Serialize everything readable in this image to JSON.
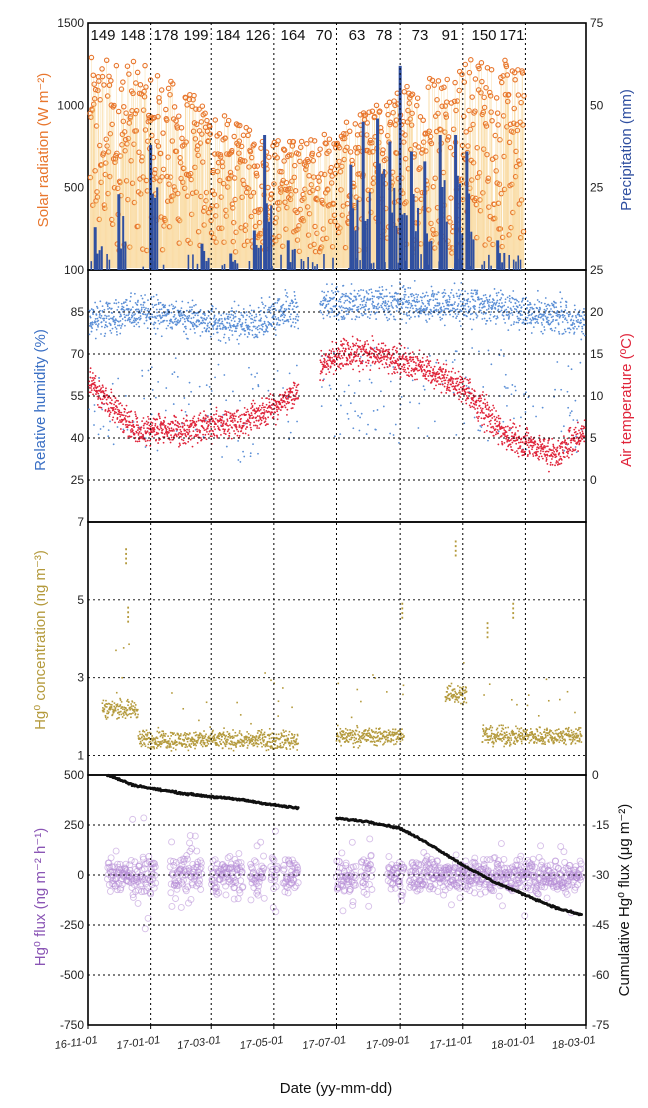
{
  "chart_data": [
    {
      "type": "bar",
      "panel": "a",
      "annotations": [
        "149",
        "148",
        "178",
        "199",
        "184",
        "126",
        "164",
        "70",
        "63",
        "78",
        "73",
        "91",
        "150",
        "171"
      ],
      "left_axis": {
        "label": "Solar radiation (W m⁻²)",
        "ticks": [
          "1500",
          "1000",
          "500",
          "100"
        ],
        "ylim": [
          0,
          1500
        ],
        "color": "#e8762d"
      },
      "right_axis": {
        "label": "Precipitation (mm)",
        "ticks": [
          "75",
          "50",
          "25"
        ],
        "ylim": [
          0,
          75
        ],
        "color": "#2f4fa0"
      },
      "series": [
        {
          "name": "Solar radiation",
          "kind": "scatter",
          "color": "#e8762d",
          "typical_range": [
            100,
            1300
          ]
        },
        {
          "name": "Precipitation",
          "kind": "bar",
          "color": "#2f4fa0",
          "events": [
            {
              "date": "16-11-08",
              "mm": 13
            },
            {
              "date": "16-12-01",
              "mm": 23
            },
            {
              "date": "17-01-01",
              "mm": 38
            },
            {
              "date": "17-02-20",
              "mm": 8
            },
            {
              "date": "17-03-20",
              "mm": 5
            },
            {
              "date": "17-04-12",
              "mm": 12
            },
            {
              "date": "17-04-22",
              "mm": 41
            },
            {
              "date": "17-05-15",
              "mm": 9
            },
            {
              "date": "17-07-15",
              "mm": 32
            },
            {
              "date": "17-07-27",
              "mm": 45
            },
            {
              "date": "17-08-10",
              "mm": 46
            },
            {
              "date": "17-08-22",
              "mm": 39
            },
            {
              "date": "17-09-01",
              "mm": 62
            },
            {
              "date": "17-09-12",
              "mm": 36
            },
            {
              "date": "17-09-25",
              "mm": 33
            },
            {
              "date": "17-10-10",
              "mm": 41
            },
            {
              "date": "17-10-25",
              "mm": 41
            },
            {
              "date": "17-11-05",
              "mm": 36
            },
            {
              "date": "17-12-05",
              "mm": 9
            }
          ]
        }
      ]
    },
    {
      "type": "scatter",
      "panel": "b",
      "left_axis": {
        "label": "Relative humidity (%)",
        "ticks": [
          "100",
          "85",
          "70",
          "55",
          "40",
          "25"
        ],
        "ylim": [
          10,
          100
        ],
        "color": "#3a6fc4"
      },
      "right_axis": {
        "label": "Air temperature (ºC)",
        "ticks": [
          "25",
          "20",
          "15",
          "10",
          "5",
          "0"
        ],
        "ylim": [
          -5,
          25
        ],
        "color": "#e0243a"
      },
      "series": [
        {
          "name": "Relative humidity",
          "color": "#5b8fd6",
          "profile": [
            [
              "16-11-01",
              82
            ],
            [
              "17-01-01",
              85
            ],
            [
              "17-04-01",
              80
            ],
            [
              "17-06-15",
              88
            ],
            [
              "17-09-01",
              88
            ],
            [
              "17-12-01",
              87
            ],
            [
              "18-03-01",
              82
            ]
          ]
        },
        {
          "name": "Air temperature",
          "color": "#e0243a",
          "profile": [
            [
              "16-11-01",
              12
            ],
            [
              "16-12-15",
              6
            ],
            [
              "17-02-01",
              6
            ],
            [
              "17-04-01",
              7
            ],
            [
              "17-05-20",
              10
            ],
            [
              "17-07-01",
              15
            ],
            [
              "17-08-15",
              15
            ],
            [
              "17-10-01",
              13
            ],
            [
              "17-11-01",
              11
            ],
            [
              "17-12-15",
              5
            ],
            [
              "18-02-01",
              3
            ],
            [
              "18-03-01",
              6
            ]
          ]
        }
      ]
    },
    {
      "type": "scatter",
      "panel": "c",
      "left_axis": {
        "label": "Hg⁰ concentration (ng m⁻³)",
        "ticks": [
          "7",
          "5",
          "3",
          "1"
        ],
        "ylim": [
          0.5,
          7
        ],
        "color": "#b49a3c"
      },
      "series": [
        {
          "name": "Hg0 concentration",
          "color": "#b49a3c",
          "segments": [
            {
              "start": "16-11-15",
              "end": "16-12-20",
              "mean": 2.2
            },
            {
              "start": "16-12-20",
              "end": "17-05-25",
              "mean": 1.4
            },
            {
              "start": "17-07-01",
              "end": "17-09-05",
              "mean": 1.5
            },
            {
              "start": "17-10-15",
              "end": "17-11-05",
              "mean": 2.6
            },
            {
              "start": "17-11-20",
              "end": "18-02-25",
              "mean": 1.5
            }
          ],
          "peaks": [
            {
              "date": "16-12-08",
              "value": 6.3
            },
            {
              "date": "16-12-10",
              "value": 4.8
            },
            {
              "date": "17-09-03",
              "value": 4.9
            },
            {
              "date": "17-10-25",
              "value": 6.5
            },
            {
              "date": "17-11-25",
              "value": 4.4
            },
            {
              "date": "17-12-20",
              "value": 4.9
            }
          ]
        }
      ]
    },
    {
      "type": "scatter",
      "panel": "d",
      "left_axis": {
        "label": "Hg⁰ flux (ng m⁻² h⁻¹)",
        "ticks": [
          "500",
          "250",
          "0",
          "-250",
          "-500",
          "-750"
        ],
        "ylim": [
          -750,
          500
        ],
        "color": "#8a55b5"
      },
      "right_axis": {
        "label": "Cumulative Hg⁰ flux (μg m⁻²)",
        "ticks": [
          "0",
          "-15",
          "-30",
          "-45",
          "-60",
          "-75"
        ],
        "ylim": [
          -75,
          0
        ],
        "color": "#111111"
      },
      "series": [
        {
          "name": "Hg0 flux",
          "color": "#b48ad6",
          "segments": [
            [
              "16-11-20",
              "17-01-06"
            ],
            [
              "17-01-20",
              "17-02-20"
            ],
            [
              "17-03-01",
              "17-04-01"
            ],
            [
              "17-04-08",
              "17-04-22"
            ],
            [
              "17-04-28",
              "17-05-05"
            ],
            [
              "17-05-10",
              "17-05-25"
            ],
            [
              "17-07-01",
              "17-07-20"
            ],
            [
              "17-07-25",
              "17-08-05"
            ],
            [
              "17-08-20",
              "17-09-05"
            ],
            [
              "17-09-10",
              "18-02-25"
            ]
          ]
        },
        {
          "name": "Cumulative Hg0 flux",
          "color": "#111111",
          "profile": [
            [
              "16-11-20",
              0
            ],
            [
              "16-12-15",
              -3
            ],
            [
              "17-01-01",
              -4
            ],
            [
              "17-02-01",
              -5.5
            ],
            [
              "17-03-01",
              -6.5
            ],
            [
              "17-04-01",
              -7.5
            ],
            [
              "17-05-01",
              -9
            ],
            [
              "17-05-25",
              -10
            ],
            [
              "17-07-01",
              -13
            ],
            [
              "17-08-01",
              -14
            ],
            [
              "17-09-01",
              -16
            ],
            [
              "17-10-01",
              -21
            ],
            [
              "17-11-01",
              -27
            ],
            [
              "17-12-01",
              -32
            ],
            [
              "18-01-01",
              -36
            ],
            [
              "18-02-01",
              -40
            ],
            [
              "18-02-25",
              -42
            ]
          ]
        }
      ]
    }
  ],
  "x_axis": {
    "label": "Date (yy-mm-dd)",
    "ticks": [
      "16-11-01",
      "17-01-01",
      "17-03-01",
      "17-05-01",
      "17-07-01",
      "17-09-01",
      "17-11-01",
      "18-01-01",
      "18-03-01"
    ],
    "range": [
      "16-11-01",
      "18-03-01"
    ]
  }
}
